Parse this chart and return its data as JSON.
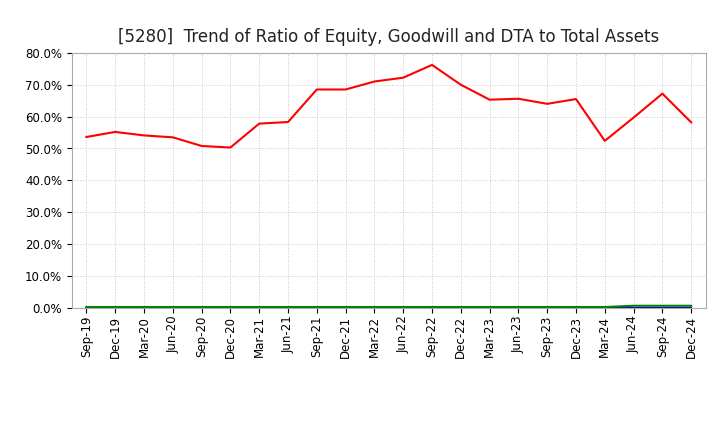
{
  "title": "[5280]  Trend of Ratio of Equity, Goodwill and DTA to Total Assets",
  "x_labels": [
    "Sep-19",
    "Dec-19",
    "Mar-20",
    "Jun-20",
    "Sep-20",
    "Dec-20",
    "Mar-21",
    "Jun-21",
    "Sep-21",
    "Dec-21",
    "Mar-22",
    "Jun-22",
    "Sep-22",
    "Dec-22",
    "Mar-23",
    "Jun-23",
    "Sep-23",
    "Dec-23",
    "Mar-24",
    "Jun-24",
    "Sep-24",
    "Dec-24"
  ],
  "equity": [
    0.536,
    0.552,
    0.541,
    0.535,
    0.508,
    0.503,
    0.578,
    0.583,
    0.685,
    0.685,
    0.71,
    0.722,
    0.762,
    0.7,
    0.653,
    0.656,
    0.64,
    0.655,
    0.524,
    0.597,
    0.672,
    0.582
  ],
  "goodwill": [
    0.0,
    0.0,
    0.0,
    0.0,
    0.0,
    0.0,
    0.0,
    0.0,
    0.0,
    0.0,
    0.0,
    0.0,
    0.0,
    0.0,
    0.0,
    0.0,
    0.0,
    0.0,
    0.0,
    0.0,
    0.0,
    0.0
  ],
  "dta": [
    0.003,
    0.003,
    0.003,
    0.003,
    0.003,
    0.003,
    0.003,
    0.003,
    0.003,
    0.003,
    0.003,
    0.003,
    0.003,
    0.003,
    0.003,
    0.003,
    0.003,
    0.003,
    0.003,
    0.007,
    0.007,
    0.007
  ],
  "equity_color": "#ff0000",
  "goodwill_color": "#0000cc",
  "dta_color": "#008000",
  "ylim": [
    0.0,
    0.8
  ],
  "yticks": [
    0.0,
    0.1,
    0.2,
    0.3,
    0.4,
    0.5,
    0.6,
    0.7,
    0.8
  ],
  "background_color": "#ffffff",
  "grid_color": "#c8c8c8",
  "title_fontsize": 12,
  "tick_fontsize": 8.5,
  "legend_fontsize": 9
}
